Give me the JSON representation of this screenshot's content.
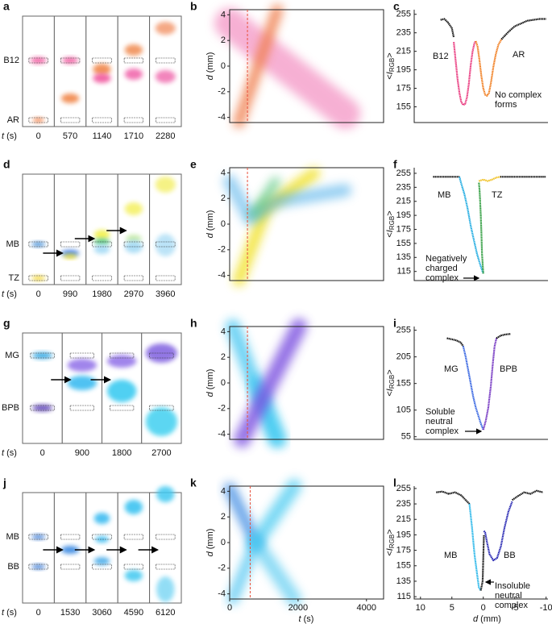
{
  "photos": [
    {
      "panel": "a",
      "species": [
        "B12",
        "AR"
      ],
      "xlabel": [
        "t",
        " (s)"
      ],
      "times": [
        0,
        570,
        1140,
        1710,
        2280
      ]
    },
    {
      "panel": "d",
      "species": [
        "MB",
        "TZ"
      ],
      "xlabel": [
        "t",
        " (s)"
      ],
      "times": [
        0,
        990,
        1980,
        2970,
        3960
      ]
    },
    {
      "panel": "g",
      "species": [
        "MG",
        "BPB"
      ],
      "xlabel": [
        "t",
        " (s)"
      ],
      "times": [
        0,
        900,
        1800,
        2700
      ]
    },
    {
      "panel": "j",
      "species": [
        "MB",
        "BB"
      ],
      "xlabel": [
        "t",
        " (s)"
      ],
      "times": [
        0,
        1530,
        3060,
        4590,
        6120
      ]
    }
  ],
  "chart_data": [
    {
      "panel": "b",
      "type": "heatmap",
      "ylabel": [
        "d",
        " (mm)"
      ],
      "xlim": [
        0,
        4500
      ],
      "ylim": [
        -4.4,
        4.4
      ],
      "yticks": [
        4,
        2,
        0,
        -2,
        -4
      ],
      "reference_line": {
        "x": 520,
        "color": "#e8503c"
      }
    },
    {
      "panel": "c",
      "type": "line",
      "ylabel": [
        "<",
        "I",
        "RGB",
        ">"
      ],
      "xlim": [
        11,
        -10.3
      ],
      "ylim": [
        138,
        260
      ],
      "yticks": [
        255,
        235,
        215,
        195,
        175,
        155
      ],
      "annotations": [
        [
          "B12"
        ],
        [
          "AR"
        ],
        [
          "No complex",
          "forms"
        ]
      ],
      "series": [
        {
          "color": "#111111",
          "x": [
            6.8,
            6.2,
            5.6,
            5,
            4.7
          ],
          "values": [
            249,
            250,
            246,
            240,
            230
          ]
        },
        {
          "color": "#e8337a",
          "x": [
            4.7,
            4.4,
            4.1,
            3.8,
            3.5,
            3.2,
            2.9,
            2.6,
            2.3,
            2,
            1.7,
            1.4,
            1.2
          ],
          "values": [
            225,
            205,
            185,
            170,
            160,
            157,
            158,
            165,
            180,
            200,
            215,
            224,
            226
          ]
        },
        {
          "color": "#f07a1a",
          "x": [
            1.2,
            0.9,
            0.6,
            0.3,
            0,
            -0.3,
            -0.6,
            -0.9,
            -1.2,
            -1.6,
            -2,
            -2.4,
            -2.9
          ],
          "values": [
            226,
            220,
            205,
            188,
            175,
            168,
            167,
            170,
            180,
            198,
            212,
            222,
            228
          ]
        },
        {
          "color": "#111111",
          "x": [
            -2.9,
            -4,
            -5,
            -6,
            -7,
            -8,
            -9,
            -10
          ],
          "values": [
            228,
            236,
            242,
            245,
            248,
            249,
            250,
            250
          ]
        }
      ]
    },
    {
      "panel": "e",
      "type": "heatmap",
      "ylabel": [
        "d",
        " (mm)"
      ],
      "xlim": [
        0,
        4500
      ],
      "ylim": [
        -4.4,
        4.4
      ],
      "yticks": [
        4,
        2,
        0,
        -2,
        -4
      ],
      "reference_line": {
        "x": 520,
        "color": "#e8503c"
      }
    },
    {
      "panel": "f",
      "type": "line",
      "ylabel": [
        "<",
        "I",
        "RGB",
        ">"
      ],
      "xlim": [
        11,
        -10.3
      ],
      "ylim": [
        102,
        263
      ],
      "yticks": [
        255,
        235,
        215,
        195,
        175,
        155,
        135,
        115
      ],
      "annotations": [
        [
          "MB"
        ],
        [
          "TZ"
        ],
        [
          "Negatively",
          "charged",
          "complex"
        ]
      ],
      "series": [
        {
          "color": "#111111",
          "x": [
            8,
            7,
            6,
            5,
            4,
            3.8
          ],
          "values": [
            250,
            250,
            250,
            250,
            250,
            250
          ]
        },
        {
          "color": "#1aa9e0",
          "x": [
            3.8,
            3.5,
            3,
            2.5,
            2,
            1.5,
            1,
            0.5,
            0.2,
            0
          ],
          "values": [
            250,
            240,
            225,
            205,
            180,
            160,
            140,
            125,
            117,
            112
          ]
        },
        {
          "color": "#2a9a3a",
          "x": [
            0,
            0.2,
            0.3,
            0.4,
            0.5,
            0.6,
            0.7
          ],
          "values": [
            112,
            140,
            170,
            195,
            215,
            232,
            242
          ]
        },
        {
          "color": "#f0c020",
          "x": [
            0.7,
            0,
            -0.7,
            -1.4,
            -2.1,
            -2.7
          ],
          "values": [
            244,
            246,
            244,
            246,
            249,
            250
          ]
        },
        {
          "color": "#111111",
          "x": [
            -2.7,
            -4,
            -6,
            -8,
            -10
          ],
          "values": [
            250,
            250,
            250,
            250,
            250
          ]
        }
      ]
    },
    {
      "panel": "h",
      "type": "heatmap",
      "ylabel": [
        "d",
        " (mm)"
      ],
      "xlim": [
        0,
        4500
      ],
      "ylim": [
        -4.4,
        4.4
      ],
      "yticks": [
        4,
        2,
        0,
        -2,
        -4
      ],
      "reference_line": {
        "x": 520,
        "color": "#e8503c"
      }
    },
    {
      "panel": "i",
      "type": "line",
      "ylabel": [
        "<",
        "I",
        "RGB",
        ">"
      ],
      "xlim": [
        11,
        -10.3
      ],
      "ylim": [
        50,
        262
      ],
      "yticks": [
        255,
        205,
        155,
        105,
        55
      ],
      "annotations": [
        [
          "MG"
        ],
        [
          "BPB"
        ],
        [
          "Soluble",
          "neutral",
          "complex"
        ]
      ],
      "series": [
        {
          "color": "#111111",
          "x": [
            5.8,
            5,
            4.3,
            3.6,
            3.2
          ],
          "values": [
            240,
            238,
            236,
            232,
            225
          ]
        },
        {
          "color": "#3060e0",
          "x": [
            3.2,
            2.8,
            2.4,
            2,
            1.6,
            1.2,
            0.8,
            0.4,
            0
          ],
          "values": [
            225,
            205,
            180,
            155,
            130,
            110,
            95,
            80,
            68
          ]
        },
        {
          "color": "#7030c0",
          "x": [
            0,
            -0.4,
            -0.8,
            -1.2,
            -1.5,
            -1.8,
            -2.1
          ],
          "values": [
            68,
            85,
            110,
            150,
            190,
            225,
            240
          ]
        },
        {
          "color": "#111111",
          "x": [
            -2.1,
            -2.8,
            -3.5,
            -4.3
          ],
          "values": [
            240,
            245,
            247,
            248
          ]
        }
      ]
    },
    {
      "panel": "k",
      "type": "heatmap",
      "ylabel": [
        "d",
        " (mm)"
      ],
      "xlabel": [
        "t",
        " (s)"
      ],
      "xlim": [
        0,
        4500
      ],
      "ylim": [
        -4.4,
        4.4
      ],
      "yticks": [
        4,
        2,
        0,
        -2,
        -4
      ],
      "xticks": [
        0,
        2000,
        4000
      ],
      "reference_line": {
        "x": 600,
        "color": "#e8503c"
      }
    },
    {
      "panel": "l",
      "type": "line",
      "ylabel": [
        "<",
        "I",
        "RGB",
        ">"
      ],
      "xlabel": [
        "d",
        " (mm)"
      ],
      "xlim": [
        11,
        -10.3
      ],
      "ylim": [
        112,
        258
      ],
      "yticks": [
        255,
        235,
        215,
        195,
        175,
        155,
        135,
        115
      ],
      "xticks": [
        10,
        5,
        0,
        -5,
        -10
      ],
      "annotations": [
        [
          "MB"
        ],
        [
          "BB"
        ],
        [
          "Insoluble",
          "neutral",
          "complex"
        ]
      ],
      "series": [
        {
          "color": "#111111",
          "x": [
            7.5,
            6.5,
            5.5,
            4.5,
            3.5,
            2.8,
            2.2
          ],
          "values": [
            250,
            251,
            248,
            250,
            246,
            240,
            235
          ]
        },
        {
          "color": "#22b4e8",
          "x": [
            2.2,
            1.8,
            1.4,
            1,
            0.7,
            0.4
          ],
          "values": [
            235,
            205,
            170,
            145,
            127,
            123
          ]
        },
        {
          "color": "#111111",
          "x": [
            0.4,
            0.1,
            0,
            -0.1
          ],
          "values": [
            123,
            135,
            165,
            195
          ]
        },
        {
          "color": "#2020b0",
          "x": [
            -0.1,
            -0.3,
            -0.6,
            -1,
            -1.6,
            -2.2,
            -2.8,
            -3.4,
            -4,
            -4.6
          ],
          "values": [
            200,
            198,
            185,
            170,
            162,
            165,
            180,
            205,
            225,
            238
          ]
        },
        {
          "color": "#111111",
          "x": [
            -4.6,
            -5.5,
            -6.5,
            -7.5,
            -8.5,
            -9.5
          ],
          "values": [
            240,
            245,
            250,
            248,
            252,
            250
          ]
        }
      ]
    }
  ]
}
